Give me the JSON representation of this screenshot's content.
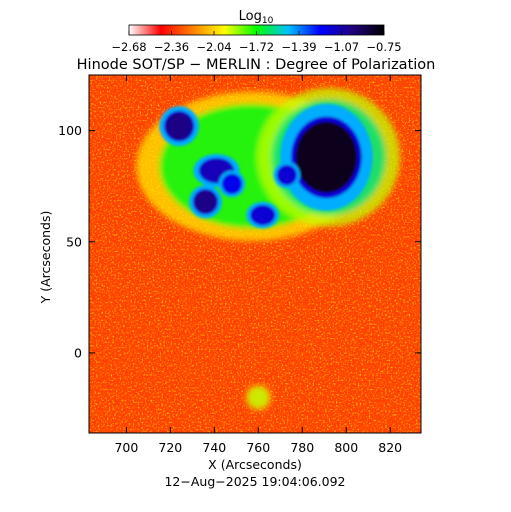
{
  "chart_data": {
    "type": "heatmap",
    "title": "Hinode SOT/SP − MERLIN : Degree of Polarization",
    "xlabel": "X (Arcseconds)",
    "ylabel": "Y (Arcseconds)",
    "footer": "12−Aug−2025 19:04:06.092",
    "colorbar": {
      "label_main": "Log",
      "label_sub": "10",
      "ticks": [
        "−2.68",
        "−2.36",
        "−2.04",
        "−1.72",
        "−1.39",
        "−1.07",
        "−0.75"
      ],
      "range": [
        -2.68,
        -0.75
      ],
      "colormap": [
        "#ffffff",
        "#ff0000",
        "#ff8000",
        "#ffff00",
        "#00ff00",
        "#00c0ff",
        "#0000ff",
        "#200080",
        "#000000"
      ]
    },
    "xlim": [
      683,
      834
    ],
    "ylim": [
      -36,
      125
    ],
    "x_ticks": [
      700,
      720,
      740,
      760,
      780,
      800,
      820
    ],
    "y_ticks": [
      0,
      50,
      100
    ],
    "x_tick_labels": [
      "700",
      "720",
      "740",
      "760",
      "780",
      "800",
      "820"
    ],
    "y_tick_labels": [
      "0",
      "50",
      "100"
    ],
    "features": [
      {
        "name": "sunspot-large",
        "x": 791,
        "y": 88,
        "rx": 14,
        "ry": 16,
        "level": -0.8
      },
      {
        "name": "pore-1",
        "x": 724,
        "y": 102,
        "rx": 6,
        "ry": 6,
        "level": -1.0
      },
      {
        "name": "pore-2",
        "x": 736,
        "y": 68,
        "rx": 5,
        "ry": 5,
        "level": -1.0
      },
      {
        "name": "pore-3",
        "x": 741,
        "y": 82,
        "rx": 7,
        "ry": 5,
        "level": -1.1
      },
      {
        "name": "pore-4",
        "x": 762,
        "y": 62,
        "rx": 5,
        "ry": 4,
        "level": -1.15
      },
      {
        "name": "pore-5",
        "x": 773,
        "y": 80,
        "rx": 4,
        "ry": 4,
        "level": -1.15
      },
      {
        "name": "pore-6",
        "x": 748,
        "y": 76,
        "rx": 4,
        "ry": 4,
        "level": -1.2
      }
    ],
    "plage": [
      {
        "x": 757,
        "y": 84,
        "rx": 42,
        "ry": 28,
        "level": -1.7
      },
      {
        "x": 792,
        "y": 88,
        "rx": 26,
        "ry": 26,
        "level": -1.6
      },
      {
        "x": 760,
        "y": -20,
        "rx": 5,
        "ry": 5,
        "level": -1.9
      }
    ]
  }
}
